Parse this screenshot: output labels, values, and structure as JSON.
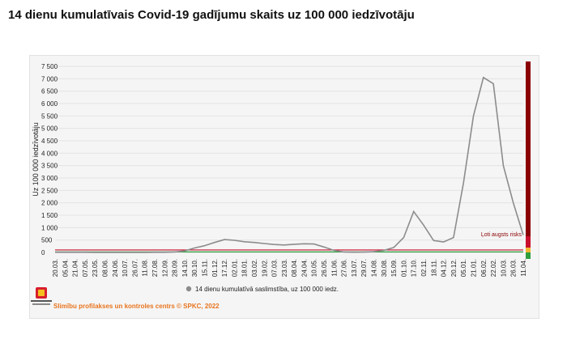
{
  "page": {
    "title": "14 dienu kumulatīvais Covid-19 gadījumu skaits uz 100 000 iedzīvotāju"
  },
  "footer": {
    "credit": "Slimību profilakses un kontroles centrs © SPKC, 2022"
  },
  "colors": {
    "series_line": "#8c8c8c",
    "risk_line": "#c8102e",
    "low_line": "#2e9e3e",
    "risk_bar": "#8b0000",
    "credit": "#e8741e"
  },
  "chart_data": {
    "type": "line",
    "title": "",
    "xlabel": "",
    "ylabel": "Uz 100 000 iedzīvotāju",
    "ylim": [
      0,
      7500
    ],
    "yticks": [
      0,
      500,
      1000,
      1500,
      2000,
      2500,
      3000,
      3500,
      4000,
      4500,
      5000,
      5500,
      6000,
      6500,
      7000,
      7500
    ],
    "ytick_labels": [
      "0",
      "500",
      "1 000",
      "1 500",
      "2 000",
      "2 500",
      "3 000",
      "3 500",
      "4 000",
      "4 500",
      "5 000",
      "5 500",
      "6 000",
      "6 500",
      "7 000",
      "7 500"
    ],
    "categories": [
      "20.03.",
      "05.04.",
      "21.04.",
      "07.05.",
      "23.05.",
      "08.06.",
      "24.06.",
      "10.07.",
      "26.07.",
      "11.08.",
      "27.08.",
      "12.09.",
      "28.09.",
      "14.10.",
      "30.10.",
      "15.11.",
      "01.12.",
      "17.12.",
      "02.01.",
      "18.01.",
      "03.02.",
      "19.02.",
      "07.03.",
      "23.03.",
      "08.04.",
      "24.04.",
      "10.05.",
      "26.05.",
      "11.06.",
      "27.06.",
      "13.07.",
      "29.07.",
      "14.08.",
      "30.08.",
      "15.09.",
      "01.10.",
      "17.10.",
      "02.11.",
      "18.11.",
      "04.12.",
      "20.12.",
      "05.01.",
      "21.01.",
      "06.02.",
      "22.02.",
      "10.03.",
      "26.03.",
      "11.04."
    ],
    "series": [
      {
        "name": "14 dienu kumulatīvā saslimstība, uz 100 000 iedz.",
        "values": [
          5,
          8,
          6,
          5,
          4,
          2,
          2,
          2,
          3,
          3,
          5,
          8,
          18,
          60,
          180,
          270,
          400,
          520,
          490,
          430,
          400,
          360,
          320,
          300,
          330,
          350,
          340,
          220,
          80,
          20,
          10,
          12,
          30,
          80,
          200,
          600,
          1650,
          1100,
          480,
          420,
          600,
          2800,
          5500,
          7050,
          6800,
          3500,
          2000,
          700
        ]
      }
    ],
    "risk_thresholds": [
      {
        "label": "Ļoti augsts risks",
        "value": 100,
        "color": "#c8102e"
      },
      {
        "label": "",
        "value": 20,
        "color": "#2e9e3e"
      }
    ],
    "risk_scale": [
      "#8b0000",
      "#c8102e",
      "#f2b632",
      "#2e9e3e"
    ],
    "legend": {
      "position": "bottom",
      "entries": [
        "14 dienu kumulatīvā saslimstība, uz 100 000 iedz."
      ]
    },
    "grid": true
  }
}
